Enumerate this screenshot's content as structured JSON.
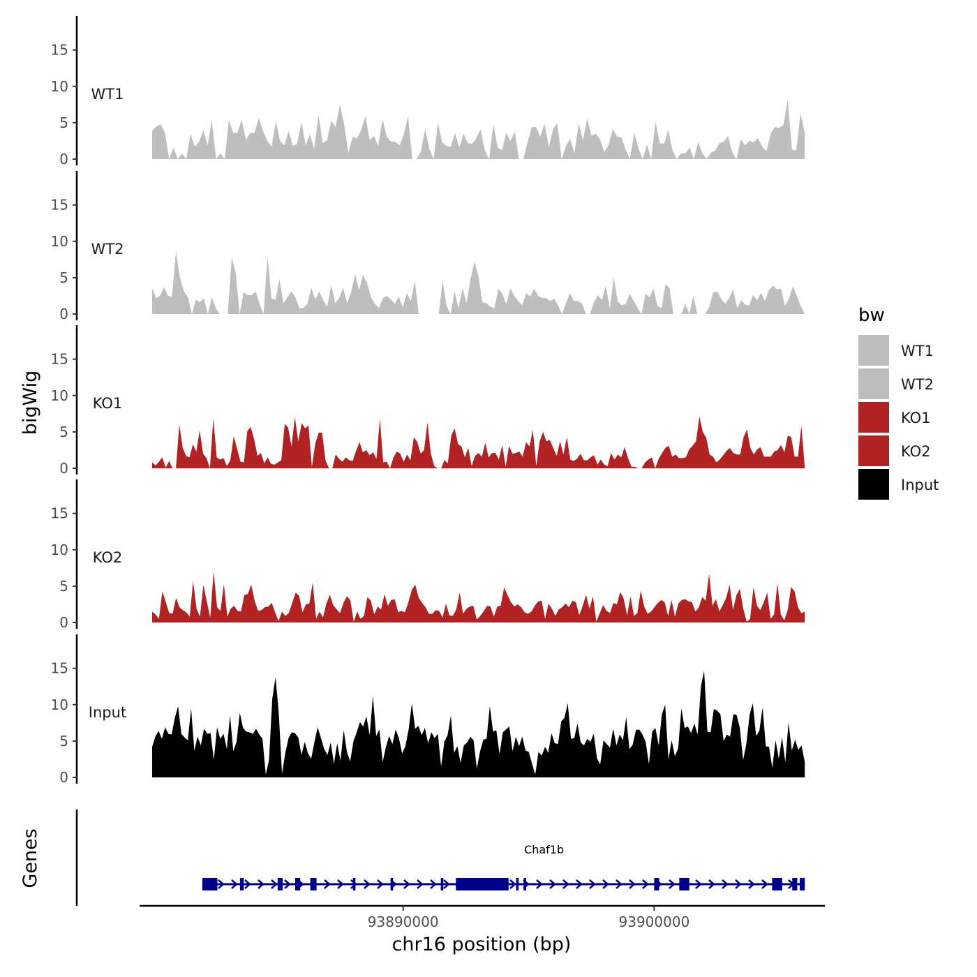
{
  "chart_data": {
    "type": "area",
    "title": "",
    "ylabel": "bigWig",
    "xlabel": "chr16 position (bp)",
    "genes_label": "Genes",
    "x_range_bp": [
      93880000,
      93906000
    ],
    "xlim": [
      93879500,
      93906800
    ],
    "x_ticks": [
      93890000,
      93900000
    ],
    "x_tick_labels": [
      "93890000",
      "93900000"
    ],
    "ylim": [
      0,
      19
    ],
    "y_ticks": [
      0,
      5,
      10,
      15
    ],
    "y_tick_labels": [
      "0",
      "5",
      "10",
      "15"
    ],
    "legend": {
      "title": "bw",
      "position": "right",
      "entries": [
        {
          "label": "WT1",
          "color": "#bebebe"
        },
        {
          "label": "WT2",
          "color": "#bebebe"
        },
        {
          "label": "KO1",
          "color": "#b22222"
        },
        {
          "label": "KO2",
          "color": "#b22222"
        },
        {
          "label": "Input",
          "color": "#000000"
        }
      ]
    },
    "series": [
      {
        "name": "WT1",
        "color": "#bebebe",
        "values": [
          3.9,
          4.5,
          4.8,
          3.6,
          0,
          1.6,
          0,
          0.8,
          0,
          3.5,
          1.7,
          2.4,
          4,
          1.9,
          5.3,
          0,
          0.8,
          0,
          5.4,
          3.6,
          3.6,
          5.4,
          2.6,
          3.6,
          3.6,
          5.6,
          3.9,
          2.5,
          1.7,
          5.2,
          2.5,
          1.9,
          3.9,
          1.8,
          2.1,
          5.1,
          1.9,
          3.4,
          1.4,
          6.1,
          2.2,
          2.6,
          5.3,
          4.4,
          7.5,
          4.9,
          0.8,
          3.1,
          2.8,
          4,
          5.9,
          2.6,
          3.2,
          1.8,
          5.5,
          3.1,
          2.4,
          2.4,
          1.9,
          3.4,
          5.9,
          0,
          0,
          1.1,
          4.1,
          1.4,
          0,
          5,
          2.3,
          1.8,
          1.7,
          3.6,
          1.6,
          3.5,
          2.2,
          2.1,
          2.9,
          4.1,
          1.2,
          0,
          4.8,
          1.6,
          1.2,
          3.6,
          2.5,
          3.8,
          0,
          0,
          2.3,
          4.4,
          4.4,
          3.1,
          4.9,
          1.6,
          4.2,
          4.9,
          0,
          1.8,
          2.8,
          0.8,
          4.9,
          2.6,
          5.6,
          3.2,
          3.5,
          2.7,
          1,
          1.9,
          4.1,
          3.1,
          3,
          1.3,
          0,
          3.6,
          1.5,
          0,
          2,
          0,
          5.2,
          2.2,
          2.1,
          4,
          1.2,
          0,
          0.8,
          0.8,
          1.6,
          0,
          2.3,
          0.8,
          0,
          0.9,
          1.2,
          2.2,
          2.4,
          3.2,
          0.9,
          0,
          2.7,
          1.9,
          2.5,
          2.3,
          2.9,
          1.7,
          1.1,
          3.5,
          4.4,
          4.3,
          4.7,
          8.1,
          1.3,
          1.2,
          6.3,
          3.6
        ]
      },
      {
        "name": "WT2",
        "color": "#bebebe",
        "values": [
          3.6,
          2.2,
          2.5,
          3.7,
          2.5,
          2.4,
          8.6,
          5,
          3.1,
          2.3,
          0,
          2,
          1.6,
          2.2,
          0,
          2.3,
          0.8,
          0,
          0,
          0,
          7.8,
          5.7,
          0,
          3,
          2.6,
          2.6,
          3.1,
          1.4,
          0,
          8,
          2.1,
          2,
          4.8,
          1.5,
          2.3,
          3.1,
          2.3,
          0.8,
          0.8,
          1.4,
          3.6,
          2,
          3.1,
          1.9,
          1,
          4,
          1.5,
          2.2,
          3.6,
          1.5,
          3,
          5.5,
          3.3,
          5.4,
          4.3,
          2.3,
          1.4,
          0.8,
          2.2,
          2.5,
          2,
          1.4,
          2.4,
          0.9,
          2.9,
          1.8,
          4.6,
          0,
          0,
          0,
          0,
          0,
          0,
          4.6,
          1.1,
          0,
          3.1,
          0.8,
          3.6,
          1.5,
          4.8,
          7.2,
          5.2,
          1.6,
          1.5,
          1,
          0.8,
          3.5,
          2.8,
          1.4,
          3.5,
          2.5,
          1.8,
          1.2,
          2.9,
          2.4,
          3.5,
          2.5,
          2.2,
          2.2,
          1.8,
          2.1,
          1.2,
          0,
          1.5,
          2.9,
          1.8,
          1.8,
          1.5,
          0,
          0,
          1.6,
          2.6,
          1.9,
          3.9,
          0.8,
          5,
          1.7,
          1.2,
          1.4,
          2.8,
          1.8,
          0.8,
          0,
          2.8,
          2.3,
          3.5,
          1.1,
          0.8,
          4.1,
          3.6,
          0,
          0,
          0,
          1.4,
          0,
          2.5,
          0,
          0,
          0,
          1,
          3,
          3.1,
          2.1,
          1.4,
          2.2,
          3.4,
          0.8,
          1.9,
          1.3,
          1.2,
          2.6,
          1.9,
          2.9,
          1.8,
          3.3,
          3.9,
          3.4,
          3.5,
          1.1,
          2.1,
          3.8,
          2.5,
          1.1,
          0
        ]
      },
      {
        "name": "KO1",
        "color": "#b22222",
        "values": [
          0.8,
          0.4,
          0.9,
          1.5,
          0.1,
          1,
          0,
          0,
          6,
          2.8,
          1.7,
          1.5,
          3.3,
          2.3,
          5.2,
          2,
          1.4,
          0,
          6.9,
          1.5,
          1.2,
          1.4,
          0.3,
          1.1,
          4.4,
          2.7,
          0.9,
          0.8,
          5.1,
          5.7,
          4,
          1.7,
          2.1,
          0.7,
          1.5,
          0.6,
          0.5,
          0.8,
          1.1,
          6.1,
          5.6,
          3,
          7,
          3.7,
          6.2,
          5.5,
          5.9,
          0.2,
          3.4,
          4.9,
          4.9,
          1.1,
          0,
          0,
          1.9,
          1.3,
          0.9,
          1.5,
          1.1,
          1,
          2.4,
          3.6,
          2.2,
          2.5,
          1.8,
          2.2,
          1.3,
          6.8,
          0.8,
          0.9,
          0,
          1.5,
          2.3,
          2,
          0.9,
          1.9,
          1.1,
          4.3,
          3.6,
          2,
          2.5,
          6.3,
          2,
          0.3,
          0,
          0,
          1.1,
          0.7,
          4.5,
          5.5,
          3.3,
          3,
          1.5,
          2.8,
          0.3,
          1.7,
          2.1,
          1.6,
          3.5,
          1.5,
          2.1,
          2.1,
          1.2,
          3.2,
          0.2,
          3.1,
          2,
          2.1,
          2.3,
          1.6,
          3.6,
          3,
          5.3,
          0.3,
          3.7,
          5,
          3.7,
          3.9,
          2.8,
          1.7,
          3.7,
          1.9,
          4.3,
          1.2,
          1,
          1.3,
          2,
          1.1,
          1.1,
          1.5,
          1.8,
          0.5,
          1.2,
          0.5,
          0.3,
          2.1,
          1.2,
          1.9,
          1.5,
          2.9,
          1.4,
          0.2,
          0.2,
          0,
          0,
          0.8,
          1.2,
          1.5,
          0,
          1.3,
          2.1,
          2.8,
          3.1,
          1.6,
          1.9,
          1.4,
          1.4,
          1.5,
          2.6,
          3.1,
          3.7,
          7.1,
          5,
          4.2,
          1.9,
          1.6,
          0.8,
          1.2,
          1.8,
          2.4,
          2.8,
          2.1,
          1.9,
          1.9,
          4.3,
          5.3,
          2.8,
          1.9,
          2.6,
          2.9,
          1.6,
          1.6,
          1.6,
          2.3,
          2.5,
          3.2,
          2.2,
          4.5,
          4.3,
          1.6,
          1.6,
          5.8,
          0.1
        ]
      },
      {
        "name": "KO2",
        "color": "#b22222",
        "values": [
          1.5,
          1.1,
          0.5,
          4.3,
          2.8,
          1.3,
          1.2,
          3.4,
          2.1,
          1.7,
          1.4,
          0.8,
          5.7,
          1.9,
          0.8,
          5.2,
          2.9,
          0.7,
          7,
          2.1,
          1.6,
          5.3,
          0.8,
          1.9,
          2.3,
          1.6,
          1.5,
          3.8,
          3.9,
          5.2,
          3,
          1.6,
          1.7,
          2.1,
          2.2,
          2.7,
          1.4,
          0.2,
          1.5,
          0.9,
          1.3,
          2.7,
          4.1,
          3.7,
          1.4,
          2.5,
          2.6,
          5.5,
          0.5,
          1.5,
          0.7,
          2.6,
          3.8,
          2.4,
          1.8,
          1.3,
          2.7,
          3.6,
          3.1,
          0.1,
          1.5,
          0.5,
          0.9,
          3.5,
          3,
          1.1,
          2.2,
          1.8,
          3.9,
          2.3,
          3.1,
          3.2,
          1.4,
          1.6,
          1.4,
          2.8,
          4.5,
          5.2,
          3.4,
          2.7,
          2.1,
          1.2,
          1.2,
          1.7,
          1.6,
          0.7,
          2.6,
          1,
          0.9,
          1.8,
          4.1,
          1.2,
          1.9,
          2.2,
          2.3,
          0.4,
          0.9,
          1.5,
          2.3,
          2.2,
          0.8,
          2.2,
          2.3,
          4.8,
          3.8,
          2.8,
          2.2,
          2.5,
          2.1,
          1.4,
          1.2,
          1.5,
          2.3,
          2.9,
          3,
          0.5,
          2.6,
          1.9,
          0.9,
          1.8,
          2.1,
          2.6,
          2.1,
          3,
          2.8,
          1,
          2.3,
          3.8,
          1.9,
          3.6,
          0.1,
          1.3,
          2.4,
          1.6,
          1.3,
          2.7,
          2.5,
          4.2,
          3.3,
          1,
          3.6,
          0.9,
          1.3,
          4.4,
          2.2,
          1.2,
          1.5,
          2.1,
          2.7,
          3.1,
          2.8,
          0.9,
          3.1,
          0.8,
          2.6,
          3.1,
          3.2,
          2.9,
          2.8,
          1.5,
          2.1,
          3.5,
          3,
          6.7,
          2.3,
          3.2,
          1.5,
          2.4,
          3.4,
          5.2,
          1.7,
          3.8,
          4.6,
          1.9,
          0.1,
          0.5,
          4.9,
          2.3,
          1.7,
          2.8,
          4.1,
          0.5,
          1.1,
          5.4,
          1.1,
          0.3,
          1.7,
          4.9,
          4.3,
          2.1,
          1.3,
          1.5
        ]
      },
      {
        "name": "Input",
        "color": "#000000",
        "values": [
          4.2,
          5.6,
          6.4,
          5.3,
          6.9,
          6,
          5.9,
          8.2,
          9.8,
          6,
          5.5,
          5.1,
          9.5,
          3.7,
          5.6,
          4.4,
          6.7,
          6,
          6.1,
          2.4,
          6.9,
          5.3,
          6,
          3.9,
          8.5,
          3.6,
          4.9,
          8.9,
          6.8,
          6.3,
          6.2,
          6,
          6.7,
          5.9,
          5.3,
          0.4,
          2.4,
          10.8,
          13.8,
          8.9,
          0.5,
          3.3,
          5.4,
          6.2,
          6.1,
          5.5,
          3.1,
          4.9,
          3.3,
          2.6,
          4.9,
          6.9,
          5.4,
          3.9,
          3.1,
          4.8,
          1.9,
          4.7,
          2.3,
          6.5,
          3.5,
          2.2,
          5,
          6.2,
          7.6,
          7,
          8.4,
          5.8,
          11.2,
          5.7,
          6.6,
          2.1,
          4.2,
          5.7,
          4.6,
          6.6,
          5.4,
          3.3,
          4.3,
          6.6,
          10.2,
          6.7,
          7.1,
          5.8,
          6.8,
          4.7,
          6.2,
          5.4,
          6,
          1.5,
          4.9,
          5.8,
          8.5,
          3.4,
          4.3,
          2,
          4.4,
          4.8,
          5.6,
          5.1,
          1.2,
          3.6,
          5.2,
          5.3,
          9.8,
          6.3,
          6.5,
          3.2,
          6.2,
          6.6,
          7,
          3.6,
          5.6,
          4.3,
          5.6,
          3.7,
          3.5,
          1.9,
          0.4,
          3.5,
          3,
          4.2,
          3.4,
          6.1,
          4.7,
          4.6,
          7.7,
          8.2,
          10.2,
          5.3,
          5.4,
          7.4,
          4.8,
          4.4,
          5.3,
          4.9,
          6,
          2.6,
          1.8,
          5.1,
          4.6,
          4.1,
          6.7,
          4.4,
          5.9,
          5.1,
          8.3,
          3.9,
          4.5,
          6.5,
          6.6,
          5.9,
          4.9,
          1.8,
          6.3,
          6.8,
          4.4,
          8.7,
          10,
          2.5,
          5.1,
          2.9,
          4,
          9.5,
          6.8,
          7,
          6.1,
          7.4,
          5.9,
          12.4,
          14.7,
          6.3,
          6.2,
          9.4,
          9.2,
          8.7,
          5,
          5.9,
          5.6,
          8.7,
          8.6,
          6.8,
          2.4,
          4.6,
          8.6,
          10.2,
          5.7,
          6.4,
          9.6,
          4.3,
          4.2,
          1.3,
          5.1,
          2.6,
          5.5,
          2.1,
          7.6,
          3.7,
          5.2,
          3.8,
          4.4,
          2.1
        ]
      }
    ],
    "gene": {
      "name": "Chaf1b",
      "strand": "+",
      "start": 93882000,
      "end": 93906000,
      "color": "#00008b",
      "exons": [
        [
          93882000,
          93882600
        ],
        [
          93883500,
          93883650
        ],
        [
          93885000,
          93885200
        ],
        [
          93885700,
          93885900
        ],
        [
          93886300,
          93886550
        ],
        [
          93888000,
          93888100
        ],
        [
          93889500,
          93889600
        ],
        [
          93891500,
          93891600
        ],
        [
          93892100,
          93894200
        ],
        [
          93894500,
          93894600
        ],
        [
          93894800,
          93894900
        ],
        [
          93900000,
          93900200
        ],
        [
          93901000,
          93901400
        ],
        [
          93904700,
          93905100
        ],
        [
          93905500,
          93905700
        ],
        [
          93905800,
          93906000
        ]
      ]
    }
  }
}
